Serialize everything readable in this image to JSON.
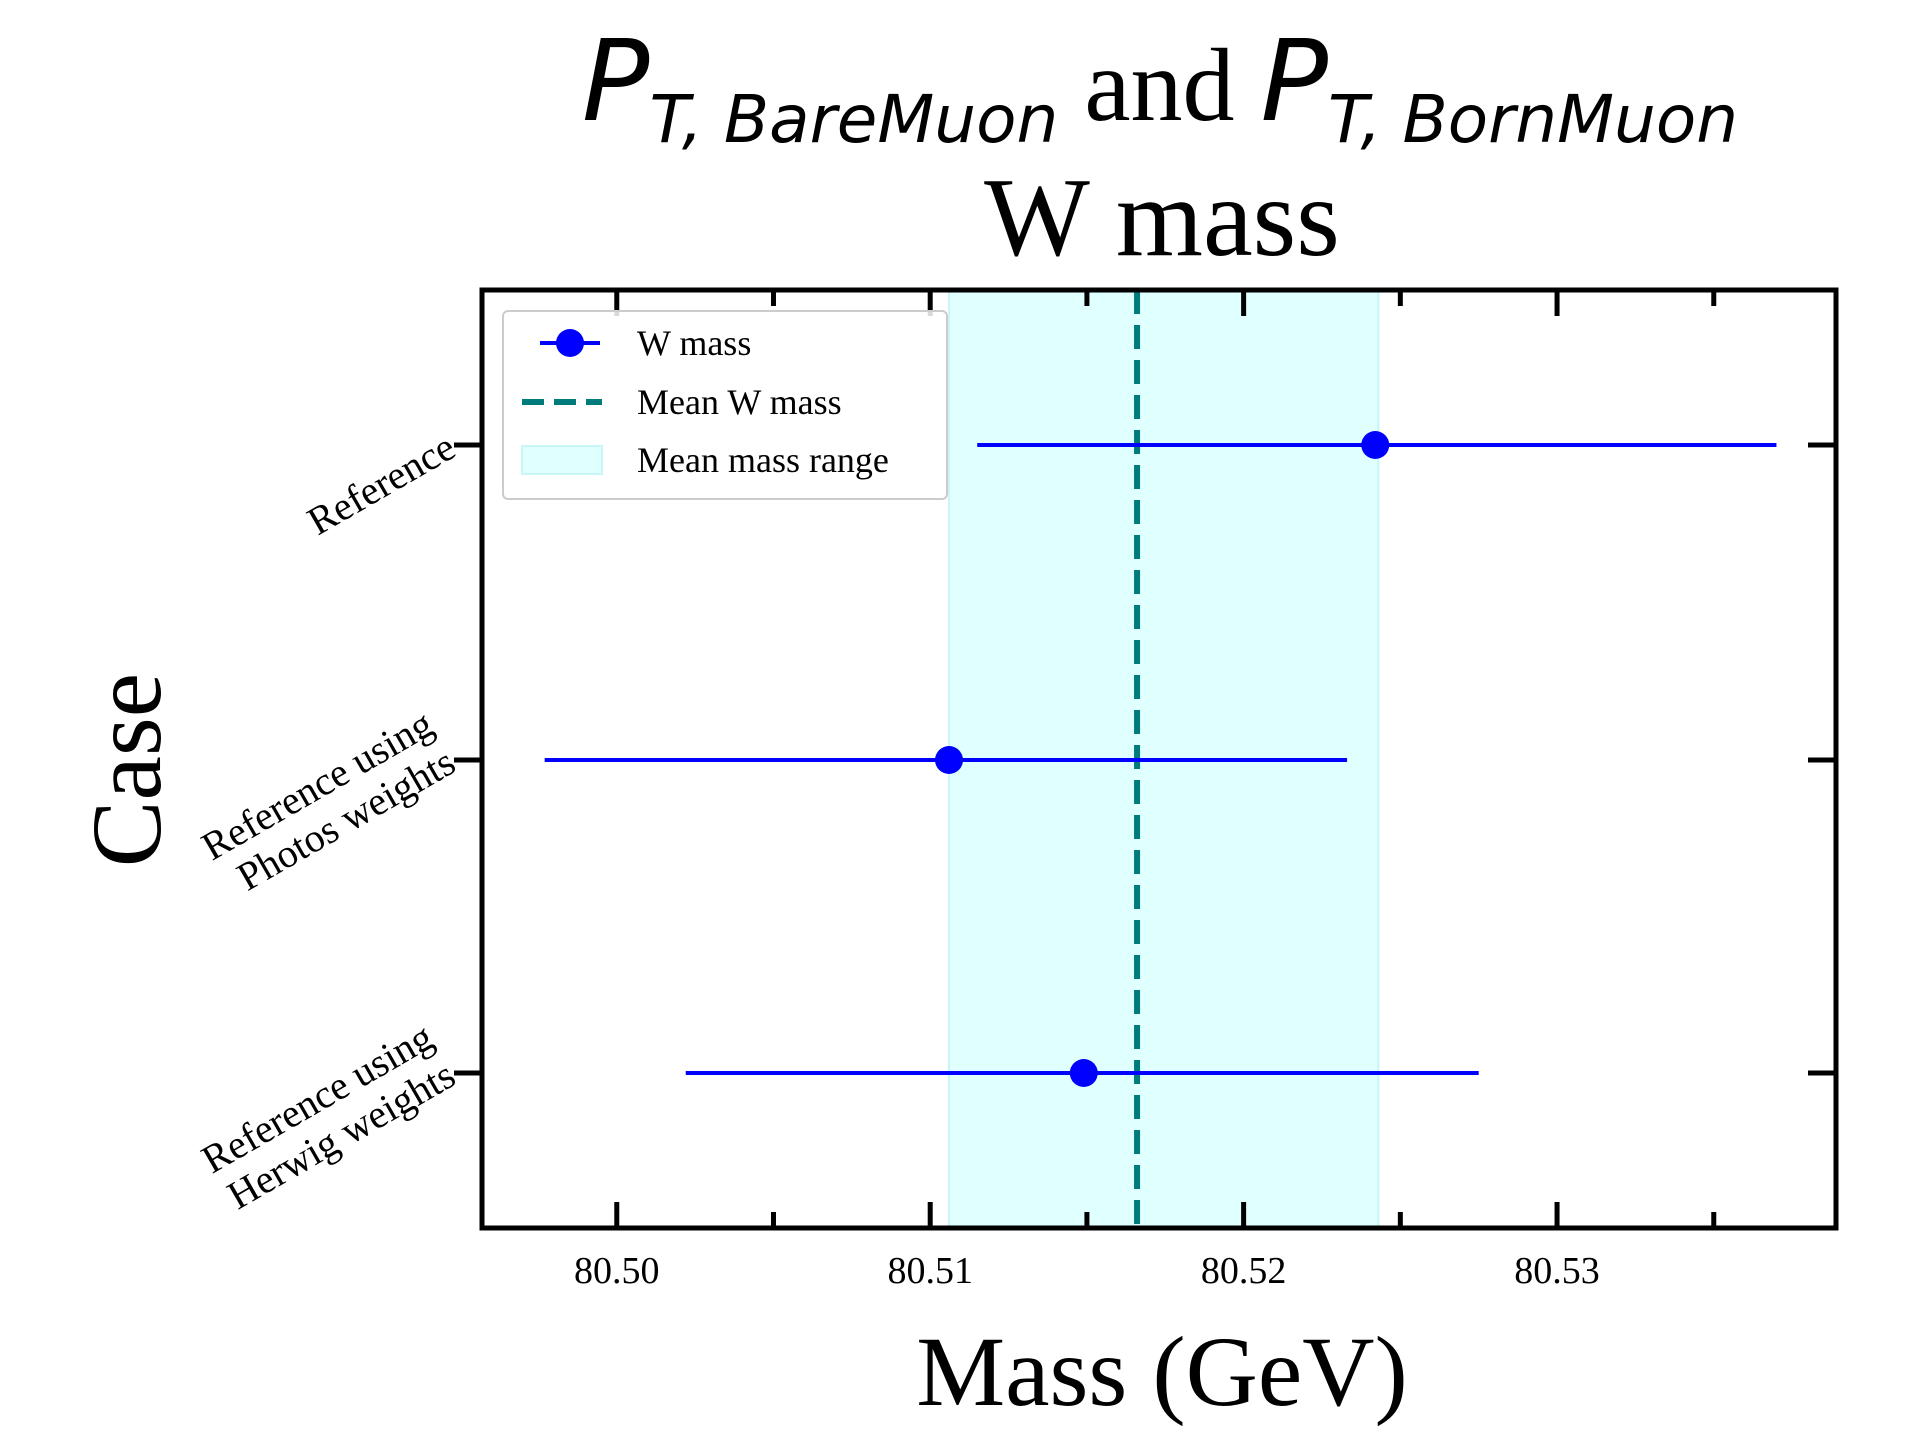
{
  "chart_data": {
    "type": "scatter",
    "title": {
      "line1": {
        "sym1": "P",
        "sub1": "T, BareMuon",
        "joiner": " and ",
        "sym2": "P",
        "sub2": "T, BornMuon"
      },
      "line2": "W mass"
    },
    "xlabel": "Mass (GeV)",
    "ylabel": "Case",
    "xlim": [
      80.4957,
      80.5389
    ],
    "xticks": [
      "80.50",
      "80.51",
      "80.52",
      "80.53"
    ],
    "xtick_values": [
      80.5,
      80.51,
      80.52,
      80.53
    ],
    "x_minor_step": 0.005,
    "grid": false,
    "legend_position": "top-left",
    "legend": {
      "points": "W mass",
      "mean_line": "Mean W mass",
      "band": "Mean mass range"
    },
    "categories": [
      [
        "Reference"
      ],
      [
        "Reference using",
        "Photos weights"
      ],
      [
        "Reference using",
        "Herwig weights"
      ]
    ],
    "series": [
      {
        "name": "W mass",
        "values": [
          80.5242,
          80.5106,
          80.5149
        ],
        "error_low": [
          80.5115,
          80.4977,
          80.5022
        ],
        "error_high": [
          80.537,
          80.5233,
          80.5275
        ]
      }
    ],
    "mean": 80.5166,
    "mean_range": [
      80.5106,
      80.5243
    ],
    "colors": {
      "points": "#0000ff",
      "mean_line": "#007b7b",
      "band": "#e0ffff",
      "band_edge": "#c8f5f5",
      "axes": "#000000"
    }
  }
}
